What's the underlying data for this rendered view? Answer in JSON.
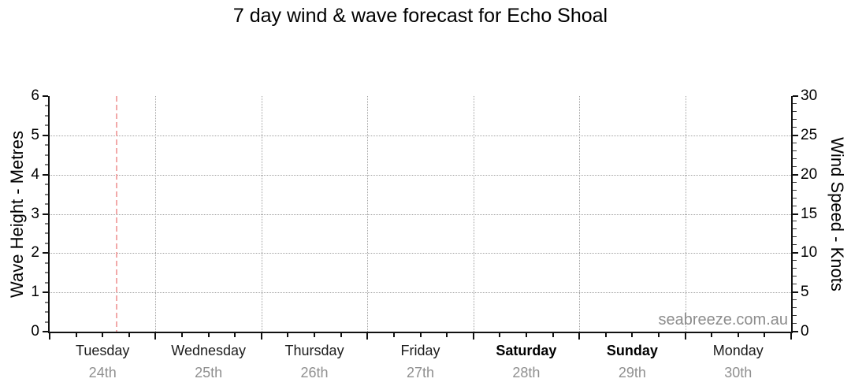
{
  "title": "7 day wind & wave forecast for Echo Shoal",
  "watermark": "seabreeze.com.au",
  "chart_data": {
    "type": "line",
    "title": "7 day wind & wave forecast for Echo Shoal",
    "series": [],
    "left_axis": {
      "label": "Wave Height - Metres",
      "min": 0,
      "max": 6,
      "ticks": [
        0,
        1,
        2,
        3,
        4,
        5,
        6
      ],
      "minor_step": 0.25
    },
    "right_axis": {
      "label": "Wind Speed - Knots",
      "min": 0,
      "max": 30,
      "ticks": [
        0,
        5,
        10,
        15,
        20,
        25,
        30
      ],
      "minor_step": 1
    },
    "x_axis": {
      "days": [
        {
          "name": "Tuesday",
          "date": "24th",
          "bold": false
        },
        {
          "name": "Wednesday",
          "date": "25th",
          "bold": false
        },
        {
          "name": "Thursday",
          "date": "26th",
          "bold": false
        },
        {
          "name": "Friday",
          "date": "27th",
          "bold": false
        },
        {
          "name": "Saturday",
          "date": "28th",
          "bold": true
        },
        {
          "name": "Sunday",
          "date": "29th",
          "bold": true
        },
        {
          "name": "Monday",
          "date": "30th",
          "bold": false
        }
      ],
      "minor_ticks_per_day": 3
    },
    "now_line": {
      "position_fraction": 0.0903,
      "color": "#f2a9a9"
    },
    "grid": true,
    "gridline_color": "#a3a3a3",
    "axis_color": "#111111"
  }
}
